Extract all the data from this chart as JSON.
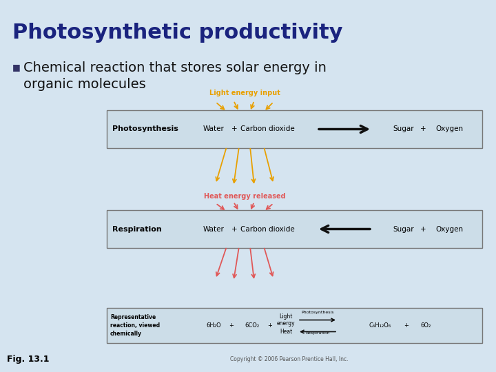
{
  "bg_color": "#d5e4f0",
  "title": "Photosynthetic productivity",
  "title_color": "#1a237e",
  "title_fontsize": 22,
  "bullet_text_line1": "Chemical reaction that stores solar energy in",
  "bullet_text_line2": "organic molecules",
  "bullet_color": "#111111",
  "bullet_fontsize": 14,
  "box_bg": "#ddeef8",
  "box_border": "#888888",
  "photo_label": "Photosynthesis",
  "resp_label": "Respiration",
  "light_color": "#e8a000",
  "heat_color": "#e05858",
  "light_energy_label": "Light energy input",
  "heat_energy_label": "Heat energy released",
  "copyright_text": "Copyright © 2006 Pearson Prentice Hall, Inc.",
  "fig_label": "Fig. 13.1"
}
